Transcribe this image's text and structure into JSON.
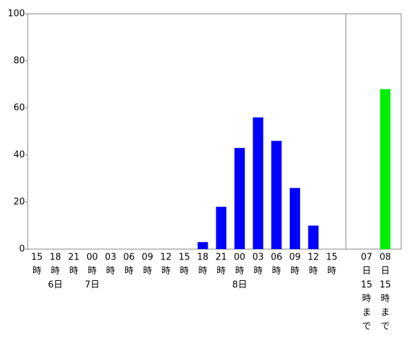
{
  "chart_data": {
    "type": "bar",
    "categories": [
      "15",
      "18",
      "21",
      "00",
      "03",
      "06",
      "09",
      "12",
      "15",
      "18",
      "21",
      "00",
      "03",
      "06",
      "09",
      "12",
      "15"
    ],
    "hour_unit": "時",
    "date_labels": [
      null,
      "6日",
      null,
      "7日",
      null,
      null,
      null,
      null,
      null,
      null,
      null,
      "8日",
      null,
      null,
      null,
      null,
      null
    ],
    "values": [
      0,
      0,
      0,
      0,
      0,
      0,
      0,
      0,
      0,
      3,
      18,
      43,
      56,
      46,
      26,
      10,
      0
    ],
    "color": "#0000ff",
    "total_categories": [
      [
        "07",
        "日",
        "15",
        "時",
        "ま",
        "で"
      ],
      [
        "08",
        "日",
        "15",
        "時",
        "ま",
        "で"
      ]
    ],
    "total_values": [
      0,
      68
    ],
    "total_color": "#00ee00",
    "ylim": [
      0,
      100
    ],
    "yticks": [
      0,
      20,
      40,
      60,
      80,
      100
    ]
  }
}
